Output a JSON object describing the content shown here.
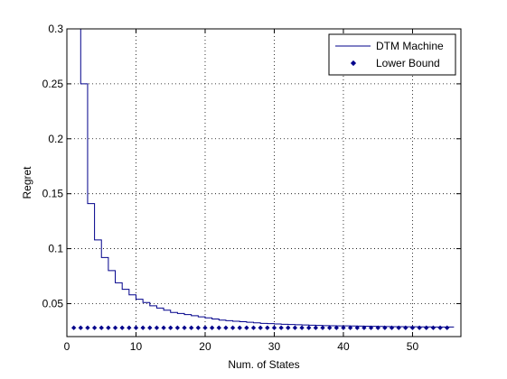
{
  "chart_data": {
    "type": "line",
    "title": "",
    "xlabel": "Num. of States",
    "ylabel": "Regret",
    "xlim": [
      0,
      57
    ],
    "ylim": [
      0.02,
      0.3
    ],
    "xticks": [
      0,
      10,
      20,
      30,
      40,
      50
    ],
    "xtick_labels": [
      "0",
      "10",
      "20",
      "30",
      "40",
      "50"
    ],
    "yticks": [
      0.05,
      0.1,
      0.15,
      0.2,
      0.25,
      0.3
    ],
    "ytick_labels": [
      "0.05",
      "0.1",
      "0.15",
      "0.2",
      "0.25",
      "0.3"
    ],
    "grid": true,
    "legend_position": "top-right",
    "series": [
      {
        "name": "DTM Machine",
        "style": "step",
        "color": "#00008B",
        "x": [
          1,
          2,
          3,
          4,
          5,
          6,
          7,
          8,
          9,
          10,
          11,
          12,
          13,
          14,
          15,
          16,
          17,
          18,
          19,
          20,
          21,
          22,
          23,
          24,
          25,
          26,
          27,
          28,
          29,
          30,
          31,
          32,
          33,
          34,
          35,
          36,
          37,
          38,
          39,
          40,
          41,
          42,
          43,
          44,
          45,
          46,
          47,
          48,
          49,
          50,
          51,
          52,
          53,
          54,
          55,
          56
        ],
        "y": [
          0.3,
          0.25,
          0.141,
          0.108,
          0.092,
          0.08,
          0.069,
          0.063,
          0.058,
          0.054,
          0.051,
          0.048,
          0.046,
          0.044,
          0.042,
          0.041,
          0.04,
          0.039,
          0.038,
          0.037,
          0.036,
          0.035,
          0.0345,
          0.034,
          0.0335,
          0.033,
          0.0325,
          0.032,
          0.0318,
          0.0315,
          0.0312,
          0.031,
          0.0308,
          0.0306,
          0.0304,
          0.0302,
          0.03,
          0.0299,
          0.0298,
          0.0297,
          0.0296,
          0.0295,
          0.0294,
          0.0293,
          0.0292,
          0.0291,
          0.029,
          0.029,
          0.0289,
          0.0289,
          0.0288,
          0.0288,
          0.0287,
          0.0287,
          0.0287,
          0.0287
        ]
      },
      {
        "name": "Lower Bound",
        "style": "markers",
        "color": "#00008B",
        "x": [
          1,
          2,
          3,
          4,
          5,
          6,
          7,
          8,
          9,
          10,
          11,
          12,
          13,
          14,
          15,
          16,
          17,
          18,
          19,
          20,
          21,
          22,
          23,
          24,
          25,
          26,
          27,
          28,
          29,
          30,
          31,
          32,
          33,
          34,
          35,
          36,
          37,
          38,
          39,
          40,
          41,
          42,
          43,
          44,
          45,
          46,
          47,
          48,
          49,
          50,
          51,
          52,
          53,
          54,
          55
        ],
        "y": [
          0.028,
          0.028,
          0.028,
          0.028,
          0.028,
          0.028,
          0.028,
          0.028,
          0.028,
          0.028,
          0.028,
          0.028,
          0.028,
          0.028,
          0.028,
          0.028,
          0.028,
          0.028,
          0.028,
          0.028,
          0.028,
          0.028,
          0.028,
          0.028,
          0.028,
          0.028,
          0.028,
          0.028,
          0.028,
          0.028,
          0.028,
          0.028,
          0.028,
          0.028,
          0.028,
          0.028,
          0.028,
          0.028,
          0.028,
          0.028,
          0.028,
          0.028,
          0.028,
          0.028,
          0.028,
          0.028,
          0.028,
          0.028,
          0.028,
          0.028,
          0.028,
          0.028,
          0.028,
          0.028,
          0.028
        ]
      }
    ]
  }
}
